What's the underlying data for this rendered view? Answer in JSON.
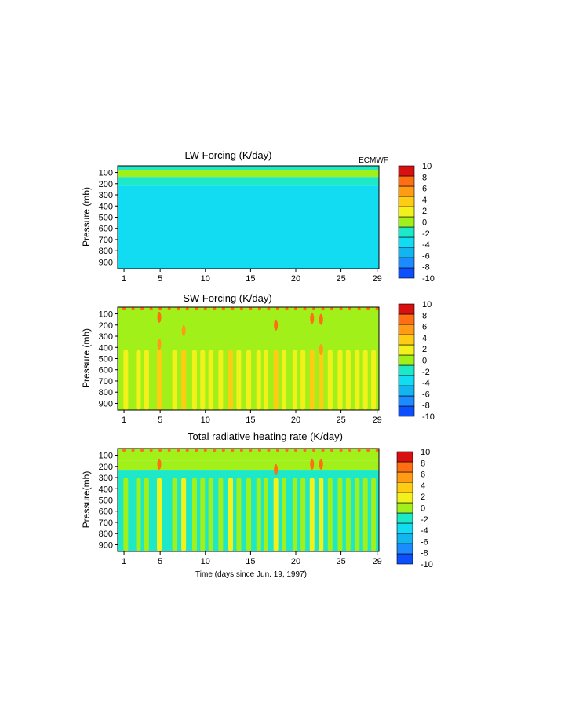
{
  "figure": {
    "source_label": "ECMWF",
    "x_axis_label": "Time (days since Jun. 19, 1997)"
  },
  "colorbar": {
    "levels": [
      -10,
      -8,
      -6,
      -4,
      -2,
      0,
      2,
      4,
      6,
      8,
      10
    ],
    "colors": [
      "#0b4fff",
      "#1c8bff",
      "#12b5f0",
      "#12dcf2",
      "#1de8c8",
      "#a2f01a",
      "#f2f21a",
      "#ffcc14",
      "#ff9b14",
      "#ff6e12",
      "#d81010"
    ]
  },
  "chart_data": [
    {
      "type": "heatmap",
      "title": "LW Forcing (K/day)",
      "ylabel": "Pressure (mb)",
      "xlabel": "",
      "xlim": [
        0.3,
        29.2
      ],
      "ylim": [
        960,
        40
      ],
      "x_ticks": [
        1,
        5,
        10,
        15,
        20,
        25,
        29
      ],
      "y_ticks": [
        100,
        200,
        300,
        400,
        500,
        600,
        700,
        800,
        900
      ],
      "y_inverted": true,
      "colorbar_range": [
        -10,
        10
      ],
      "bands": [
        {
          "p_top": 40,
          "p_bottom": 80,
          "value": -1
        },
        {
          "p_top": 80,
          "p_bottom": 140,
          "value": 1
        },
        {
          "p_top": 140,
          "p_bottom": 220,
          "value": -1
        },
        {
          "p_top": 220,
          "p_bottom": 960,
          "value": -2.5
        }
      ]
    },
    {
      "type": "heatmap",
      "title": "SW Forcing (K/day)",
      "ylabel": "Pressure (mb)",
      "xlabel": "",
      "xlim": [
        0.3,
        29.2
      ],
      "ylim": [
        960,
        40
      ],
      "x_ticks": [
        1,
        5,
        10,
        15,
        20,
        25,
        29
      ],
      "y_ticks": [
        100,
        200,
        300,
        400,
        500,
        600,
        700,
        800,
        900
      ],
      "y_inverted": true,
      "colorbar_range": [
        -10,
        10
      ],
      "background_value": 1,
      "streaks": [
        {
          "day": 1.2,
          "value": 3
        },
        {
          "day": 2.6,
          "value": 3
        },
        {
          "day": 3.5,
          "value": 3
        },
        {
          "day": 4.9,
          "value": 5
        },
        {
          "day": 6.6,
          "value": 3
        },
        {
          "day": 7.6,
          "value": 5
        },
        {
          "day": 8.8,
          "value": 3
        },
        {
          "day": 9.7,
          "value": 3
        },
        {
          "day": 10.6,
          "value": 3
        },
        {
          "day": 11.7,
          "value": 3
        },
        {
          "day": 12.8,
          "value": 5
        },
        {
          "day": 13.7,
          "value": 3
        },
        {
          "day": 14.8,
          "value": 3
        },
        {
          "day": 15.9,
          "value": 3
        },
        {
          "day": 16.7,
          "value": 3
        },
        {
          "day": 17.8,
          "value": 5
        },
        {
          "day": 18.7,
          "value": 3
        },
        {
          "day": 19.9,
          "value": 3
        },
        {
          "day": 20.8,
          "value": 3
        },
        {
          "day": 21.8,
          "value": 5
        },
        {
          "day": 22.8,
          "value": 5
        },
        {
          "day": 23.8,
          "value": 3
        },
        {
          "day": 24.9,
          "value": 3
        },
        {
          "day": 25.8,
          "value": 3
        },
        {
          "day": 26.8,
          "value": 3
        },
        {
          "day": 27.7,
          "value": 3
        },
        {
          "day": 28.6,
          "value": 3
        }
      ],
      "hotspots": [
        {
          "day": 4.9,
          "p": 130,
          "value": 9
        },
        {
          "day": 4.9,
          "p": 370,
          "value": 7
        },
        {
          "day": 17.8,
          "p": 200,
          "value": 9
        },
        {
          "day": 21.8,
          "p": 140,
          "value": 9
        },
        {
          "day": 22.8,
          "p": 150,
          "value": 9
        },
        {
          "day": 22.8,
          "p": 420,
          "value": 7
        },
        {
          "day": 7.6,
          "p": 250,
          "value": 7
        }
      ]
    },
    {
      "type": "heatmap",
      "title": "Total radiative heating rate (K/day)",
      "ylabel": "Pressure(mb)",
      "xlabel": "Time (days since Jun. 19, 1997)",
      "xlim": [
        0.3,
        29.2
      ],
      "ylim": [
        960,
        40
      ],
      "x_ticks": [
        1,
        5,
        10,
        15,
        20,
        25,
        29
      ],
      "y_ticks": [
        100,
        200,
        300,
        400,
        500,
        600,
        700,
        800,
        900
      ],
      "y_inverted": true,
      "colorbar_range": [
        -10,
        10
      ],
      "bands": [
        {
          "p_top": 40,
          "p_bottom": 150,
          "value": 1
        },
        {
          "p_top": 150,
          "p_bottom": 230,
          "value": 1
        },
        {
          "p_top": 230,
          "p_bottom": 960,
          "value": -1
        }
      ],
      "streaks_value": 1,
      "hotspots": [
        {
          "day": 4.9,
          "p": 180,
          "value": 9
        },
        {
          "day": 17.8,
          "p": 230,
          "value": 9
        },
        {
          "day": 21.8,
          "p": 180,
          "value": 9
        },
        {
          "day": 22.8,
          "p": 180,
          "value": 9
        }
      ]
    }
  ]
}
